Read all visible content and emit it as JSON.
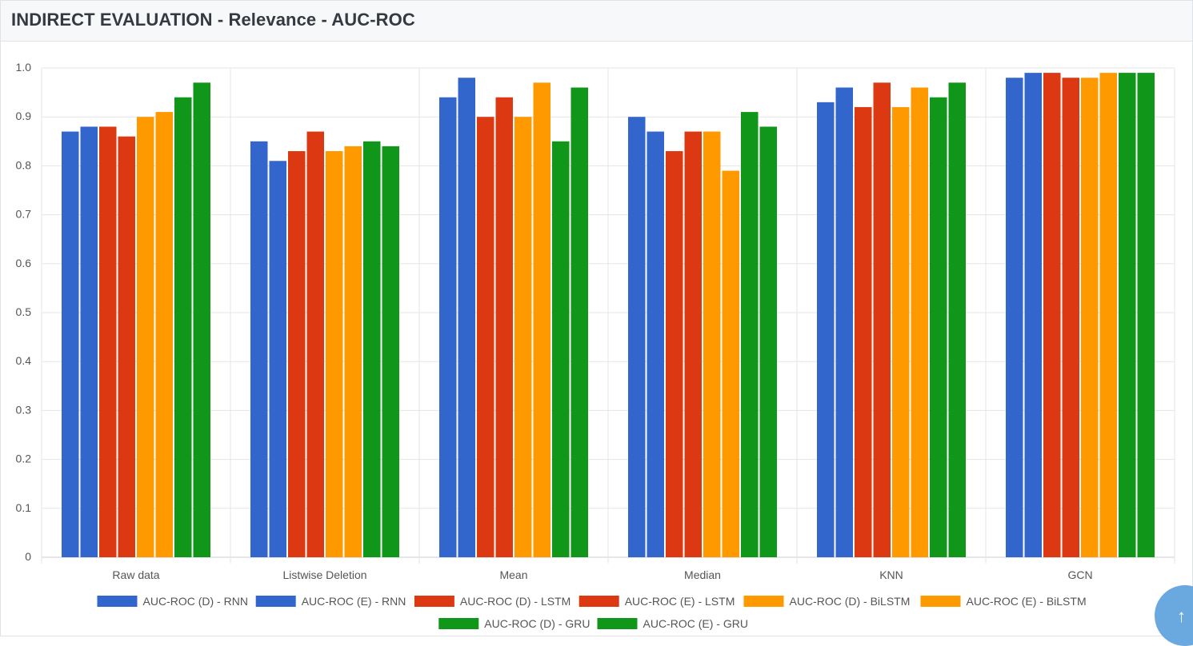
{
  "header": {
    "title": "INDIRECT EVALUATION - Relevance - AUC-ROC"
  },
  "scroll_top": {
    "icon": "arrow-up-icon",
    "glyph": "↑"
  },
  "chart_data": {
    "type": "bar",
    "categories": [
      "Raw data",
      "Listwise Deletion",
      "Mean",
      "Median",
      "KNN",
      "GCN"
    ],
    "ylim": [
      0,
      1.0
    ],
    "yticks": [
      "0",
      "0.1",
      "0.2",
      "0.3",
      "0.4",
      "0.5",
      "0.6",
      "0.7",
      "0.8",
      "0.9",
      "1.0"
    ],
    "grid": true,
    "legend_position": "bottom",
    "xlabel": "",
    "ylabel": "",
    "series": [
      {
        "name": "AUC-ROC (D) - RNN",
        "color": "#3366cc",
        "values": [
          0.87,
          0.85,
          0.94,
          0.9,
          0.93,
          0.98
        ]
      },
      {
        "name": "AUC-ROC (E) - RNN",
        "color": "#3366cc",
        "values": [
          0.88,
          0.81,
          0.98,
          0.87,
          0.96,
          0.99
        ]
      },
      {
        "name": "AUC-ROC (D) - LSTM",
        "color": "#dc3912",
        "values": [
          0.88,
          0.83,
          0.9,
          0.83,
          0.92,
          0.99
        ]
      },
      {
        "name": "AUC-ROC (E) - LSTM",
        "color": "#dc3912",
        "values": [
          0.86,
          0.87,
          0.94,
          0.87,
          0.97,
          0.98
        ]
      },
      {
        "name": "AUC-ROC (D) - BiLSTM",
        "color": "#ff9900",
        "values": [
          0.9,
          0.83,
          0.9,
          0.87,
          0.92,
          0.98
        ]
      },
      {
        "name": "AUC-ROC (E) - BiLSTM",
        "color": "#ff9900",
        "values": [
          0.91,
          0.84,
          0.97,
          0.79,
          0.96,
          0.99
        ]
      },
      {
        "name": "AUC-ROC (D) - GRU",
        "color": "#109618",
        "values": [
          0.94,
          0.85,
          0.85,
          0.91,
          0.94,
          0.99
        ]
      },
      {
        "name": "AUC-ROC (E) - GRU",
        "color": "#109618",
        "values": [
          0.97,
          0.84,
          0.96,
          0.88,
          0.97,
          0.99
        ]
      }
    ]
  }
}
